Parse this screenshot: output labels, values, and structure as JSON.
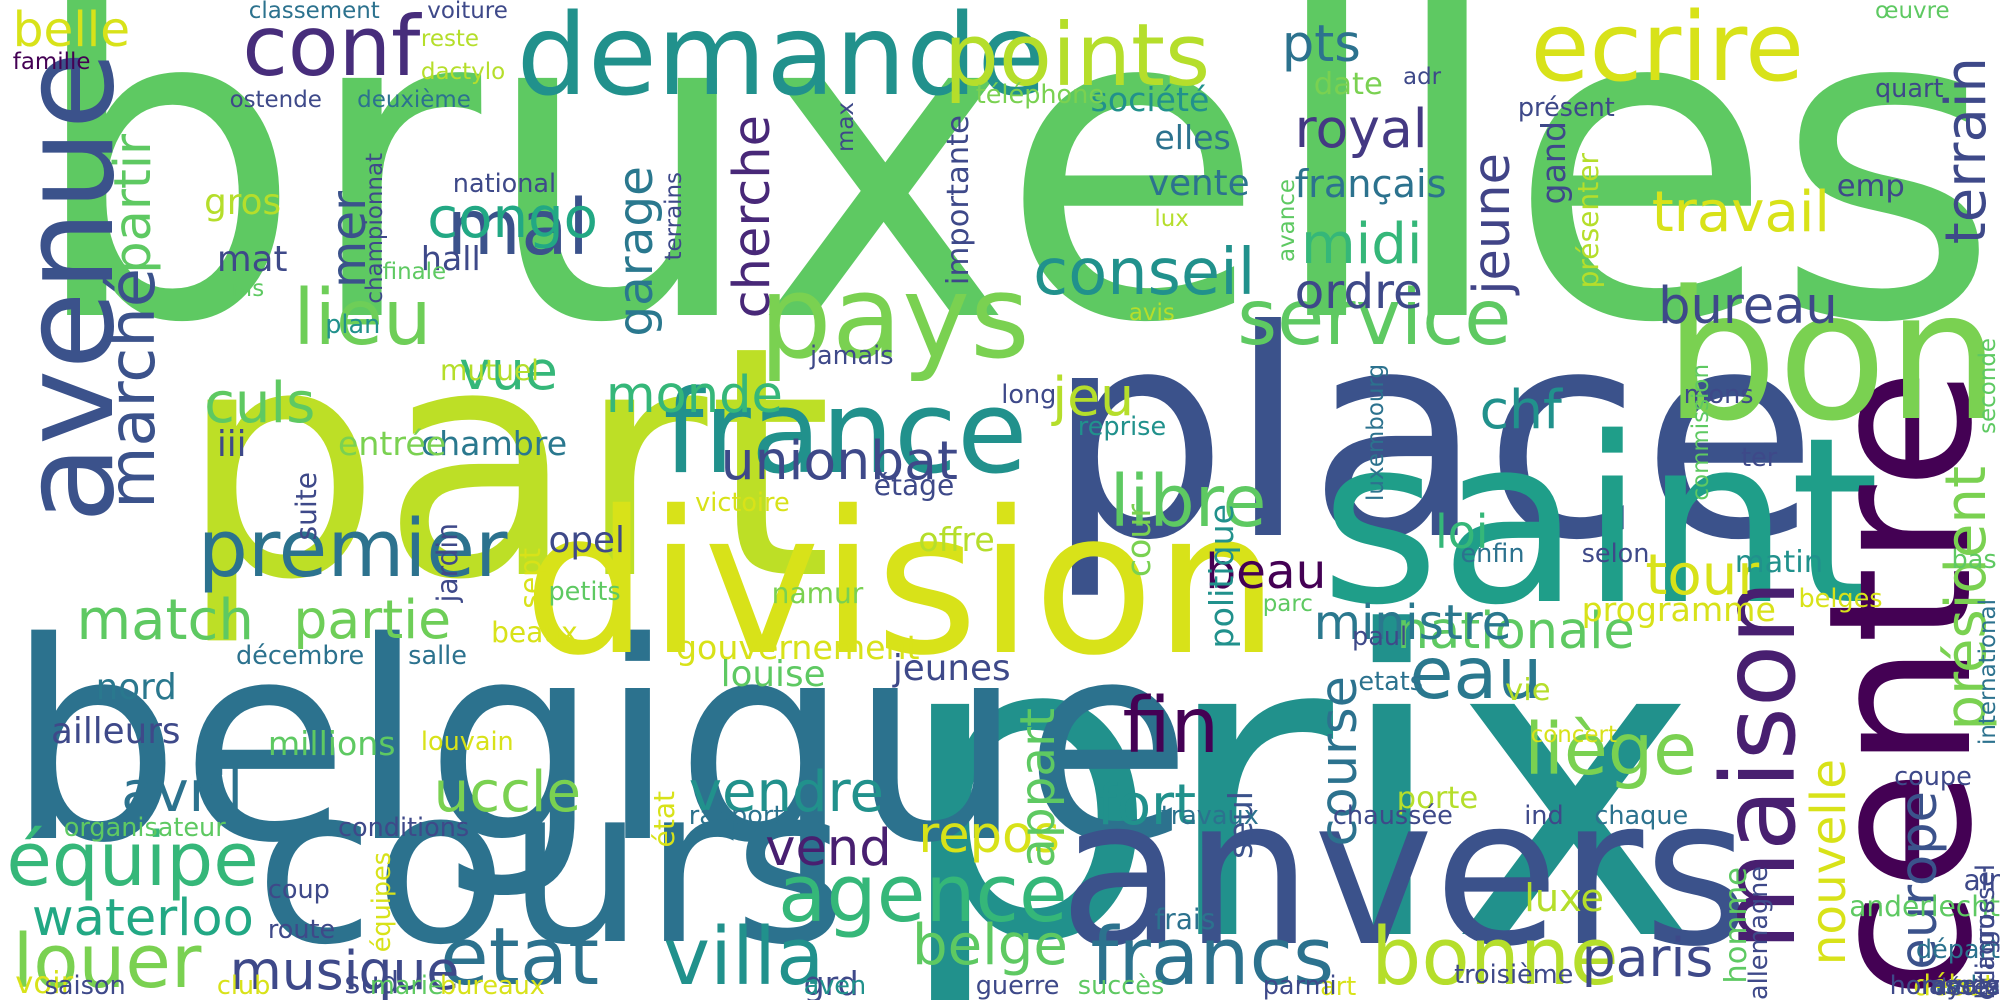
{
  "words": [
    {
      "text": "bruxelles",
      "color": "#5ec962"
    },
    {
      "text": "prix",
      "color": "#21918c"
    },
    {
      "text": "part",
      "color": "#bddf26"
    },
    {
      "text": "belgique",
      "color": "#2c728e"
    },
    {
      "text": "place",
      "color": "#3b528b"
    },
    {
      "text": "division",
      "color": "#d8e219"
    },
    {
      "text": "saint",
      "color": "#1f9e89"
    },
    {
      "text": "centre",
      "color": "#440154"
    },
    {
      "text": "anvers",
      "color": "#3b528b"
    },
    {
      "text": "cours",
      "color": "#2c728e"
    },
    {
      "text": "bon",
      "color": "#7ad151"
    },
    {
      "text": "avenue",
      "color": "#3b528b"
    },
    {
      "text": "demande",
      "color": "#21918c"
    },
    {
      "text": "pays",
      "color": "#7ad151"
    },
    {
      "text": "france",
      "color": "#21918c"
    },
    {
      "text": "maison",
      "color": "#481f70"
    },
    {
      "text": "ecrire",
      "color": "#d8e219"
    },
    {
      "text": "points",
      "color": "#b5de2b"
    },
    {
      "text": "conf",
      "color": "#472d7b"
    },
    {
      "text": "premier",
      "color": "#2c728e"
    },
    {
      "text": "lieu",
      "color": "#6ece58"
    },
    {
      "text": "mal",
      "color": "#3b528b"
    },
    {
      "text": "service",
      "color": "#5ec962"
    },
    {
      "text": "état",
      "color": "#2c728e"
    },
    {
      "text": "villa",
      "color": "#21918c"
    },
    {
      "text": "francs",
      "color": "#2c728e"
    },
    {
      "text": "agence",
      "color": "#35b779"
    },
    {
      "text": "bonne",
      "color": "#b5de2b"
    },
    {
      "text": "louer",
      "color": "#7ad151"
    },
    {
      "text": "musique",
      "color": "#3e4989"
    },
    {
      "text": "équipe",
      "color": "#35b779"
    },
    {
      "text": "waterloo",
      "color": "#22a884"
    },
    {
      "text": "fin",
      "color": "#440154"
    },
    {
      "text": "libre",
      "color": "#5ec962"
    },
    {
      "text": "eau",
      "color": "#2a788e"
    },
    {
      "text": "liège",
      "color": "#7ad151"
    },
    {
      "text": "nationale",
      "color": "#5ec962"
    },
    {
      "text": "terrain",
      "color": "#3e4989"
    },
    {
      "text": "travail",
      "color": "#d8e219"
    },
    {
      "text": "bureau",
      "color": "#3e4989"
    },
    {
      "text": "président",
      "color": "#7ad151"
    },
    {
      "text": "europe",
      "color": "#3b528b"
    },
    {
      "text": "nouvelle",
      "color": "#d8e219"
    },
    {
      "text": "paris",
      "color": "#3e4989"
    },
    {
      "text": "tour",
      "color": "#d8e219"
    },
    {
      "text": "marché",
      "color": "#3b528b"
    },
    {
      "text": "partir",
      "color": "#5ec962"
    },
    {
      "text": "culs",
      "color": "#5ec962"
    },
    {
      "text": "vue",
      "color": "#35b779"
    },
    {
      "text": "congo",
      "color": "#22a884"
    },
    {
      "text": "conseil",
      "color": "#21918c"
    },
    {
      "text": "midi",
      "color": "#35b779"
    },
    {
      "text": "ordre",
      "color": "#3e4989"
    },
    {
      "text": "royal",
      "color": "#443983"
    },
    {
      "text": "jeune",
      "color": "#414487"
    },
    {
      "text": "cherche",
      "color": "#482878"
    },
    {
      "text": "garage",
      "color": "#2a788e"
    },
    {
      "text": "match",
      "color": "#5ec962"
    },
    {
      "text": "partie",
      "color": "#6ece58"
    },
    {
      "text": "avril",
      "color": "#2c728e"
    },
    {
      "text": "uccle",
      "color": "#7ad151"
    },
    {
      "text": "vendre",
      "color": "#21918c"
    },
    {
      "text": "vend",
      "color": "#481f70"
    },
    {
      "text": "repos",
      "color": "#d8e219"
    },
    {
      "text": "belge",
      "color": "#5ec962"
    },
    {
      "text": "unionbat",
      "color": "#3e4989"
    },
    {
      "text": "monde",
      "color": "#35b779"
    },
    {
      "text": "jeu",
      "color": "#b5de2b"
    },
    {
      "text": "chf",
      "color": "#21918c"
    },
    {
      "text": "ministre",
      "color": "#2a788e"
    },
    {
      "text": "course",
      "color": "#2c728e"
    },
    {
      "text": "appart",
      "color": "#5ec962"
    },
    {
      "text": "fort",
      "color": "#21918c"
    },
    {
      "text": "beau",
      "color": "#440154"
    },
    {
      "text": "loi",
      "color": "#35b779"
    },
    {
      "text": "mer",
      "color": "#3b528b"
    },
    {
      "text": "pts",
      "color": "#2c728e"
    },
    {
      "text": "belle",
      "color": "#d8e219"
    },
    {
      "text": "luxe",
      "color": "#b5de2b"
    },
    {
      "text": "homme",
      "color": "#5ec962"
    },
    {
      "text": "gouvernement",
      "color": "#d8e219"
    },
    {
      "text": "louise",
      "color": "#5ec962"
    },
    {
      "text": "jeunes",
      "color": "#3e4989"
    },
    {
      "text": "millions",
      "color": "#5ec962"
    },
    {
      "text": "ailleurs",
      "color": "#3e4989"
    },
    {
      "text": "nord",
      "color": "#2a788e"
    },
    {
      "text": "gros",
      "color": "#b5de2b"
    },
    {
      "text": "mat",
      "color": "#3e4989"
    },
    {
      "text": "hall",
      "color": "#3e4989"
    },
    {
      "text": "chambre",
      "color": "#2a788e"
    },
    {
      "text": "entrée",
      "color": "#7ad151"
    },
    {
      "text": "opel",
      "color": "#3e4989"
    },
    {
      "text": "namur",
      "color": "#7ad151"
    },
    {
      "text": "offre",
      "color": "#b5de2b"
    },
    {
      "text": "cour",
      "color": "#7ad151"
    },
    {
      "text": "matin",
      "color": "#21918c"
    },
    {
      "text": "programme",
      "color": "#d8e219"
    },
    {
      "text": "porte",
      "color": "#b5de2b"
    },
    {
      "text": "seul",
      "color": "#3b528b"
    },
    {
      "text": "politique",
      "color": "#21918c"
    },
    {
      "text": "vente",
      "color": "#2c728e"
    },
    {
      "text": "elles",
      "color": "#2c728e"
    },
    {
      "text": "français",
      "color": "#2c728e"
    },
    {
      "text": "société",
      "color": "#21918c"
    },
    {
      "text": "date",
      "color": "#7ad151"
    },
    {
      "text": "gand",
      "color": "#3e4989"
    },
    {
      "text": "emp",
      "color": "#3e4989"
    },
    {
      "text": "présenter",
      "color": "#b5de2b"
    },
    {
      "text": "présent",
      "color": "#3e4989"
    },
    {
      "text": "quart",
      "color": "#3e4989"
    },
    {
      "text": "œuvre",
      "color": "#5ec962"
    },
    {
      "text": "adr",
      "color": "#3e4989"
    },
    {
      "text": "téléphone",
      "color": "#7ad151"
    },
    {
      "text": "importante",
      "color": "#3e4989"
    },
    {
      "text": "jamais",
      "color": "#3e4989"
    },
    {
      "text": "max",
      "color": "#3e4989"
    },
    {
      "text": "terrains",
      "color": "#3e4989"
    },
    {
      "text": "national",
      "color": "#3e4989"
    },
    {
      "text": "championnat",
      "color": "#3e4989"
    },
    {
      "text": "finale",
      "color": "#5ec962"
    },
    {
      "text": "unis",
      "color": "#5ec962"
    },
    {
      "text": "plan",
      "color": "#21918c"
    },
    {
      "text": "mutuel",
      "color": "#b5de2b"
    },
    {
      "text": "deuxième",
      "color": "#2c728e"
    },
    {
      "text": "ostende",
      "color": "#3e4989"
    },
    {
      "text": "dactylo",
      "color": "#b5de2b"
    },
    {
      "text": "reste",
      "color": "#b5de2b"
    },
    {
      "text": "voiture",
      "color": "#3e4989"
    },
    {
      "text": "classement",
      "color": "#2c728e"
    },
    {
      "text": "famille",
      "color": "#440154"
    },
    {
      "text": "avis",
      "color": "#b5de2b"
    },
    {
      "text": "lux",
      "color": "#b5de2b"
    },
    {
      "text": "avance",
      "color": "#5ec962"
    },
    {
      "text": "long",
      "color": "#3e4989"
    },
    {
      "text": "reprise",
      "color": "#21918c"
    },
    {
      "text": "luxembourg",
      "color": "#2c728e"
    },
    {
      "text": "mons",
      "color": "#3e4989"
    },
    {
      "text": "ter",
      "color": "#3e4989"
    },
    {
      "text": "commission",
      "color": "#5ec962"
    },
    {
      "text": "seconde",
      "color": "#5ec962"
    },
    {
      "text": "bas",
      "color": "#5ec962"
    },
    {
      "text": "belges",
      "color": "#d8e219"
    },
    {
      "text": "international",
      "color": "#2c728e"
    },
    {
      "text": "coupe",
      "color": "#3e4989"
    },
    {
      "text": "selon",
      "color": "#3e4989"
    },
    {
      "text": "enfin",
      "color": "#2c728e"
    },
    {
      "text": "vie",
      "color": "#b5de2b"
    },
    {
      "text": "étage",
      "color": "#3e4989"
    },
    {
      "text": "victoire",
      "color": "#d8e219"
    },
    {
      "text": "parc",
      "color": "#5ec962"
    },
    {
      "text": "paul",
      "color": "#3e4989"
    },
    {
      "text": "etats",
      "color": "#2c728e"
    },
    {
      "text": "iii",
      "color": "#3e4989"
    },
    {
      "text": "suite",
      "color": "#3e4989"
    },
    {
      "text": "jardin",
      "color": "#3e4989"
    },
    {
      "text": "sept",
      "color": "#d8e219"
    },
    {
      "text": "petits",
      "color": "#5ec962"
    },
    {
      "text": "beaux",
      "color": "#d8e219"
    },
    {
      "text": "décembre",
      "color": "#2c728e"
    },
    {
      "text": "salle",
      "color": "#2c728e"
    },
    {
      "text": "louvain",
      "color": "#d8e219"
    },
    {
      "text": "organisateur",
      "color": "#5ec962"
    },
    {
      "text": "conditions",
      "color": "#3e4989"
    },
    {
      "text": "rapport",
      "color": "#2c728e"
    },
    {
      "text": "travaux",
      "color": "#2c728e"
    },
    {
      "text": "chaussée",
      "color": "#3e4989"
    },
    {
      "text": "ind",
      "color": "#3e4989"
    },
    {
      "text": "chaque",
      "color": "#2c728e"
    },
    {
      "text": "concert",
      "color": "#d8e219"
    },
    {
      "text": "état",
      "color": "#d8e219"
    },
    {
      "text": "équipes",
      "color": "#d8e219"
    },
    {
      "text": "coup",
      "color": "#3e4989"
    },
    {
      "text": "route",
      "color": "#3e4989"
    },
    {
      "text": "voir",
      "color": "#d8e219"
    },
    {
      "text": "saison",
      "color": "#3e4989"
    },
    {
      "text": "club",
      "color": "#d8e219"
    },
    {
      "text": "sud",
      "color": "#3e4989"
    },
    {
      "text": "marie",
      "color": "#5ec962"
    },
    {
      "text": "bureaux",
      "color": "#d8e219"
    },
    {
      "text": "art",
      "color": "#d8e219"
    },
    {
      "text": "succès",
      "color": "#5ec962"
    },
    {
      "text": "grd",
      "color": "#3e4989"
    },
    {
      "text": "aven",
      "color": "#21918c"
    },
    {
      "text": "guerre",
      "color": "#3e4989"
    },
    {
      "text": "parmi",
      "color": "#3e4989"
    },
    {
      "text": "frais",
      "color": "#2c728e"
    },
    {
      "text": "troisième",
      "color": "#3e4989"
    },
    {
      "text": "allemagne",
      "color": "#3e4989"
    },
    {
      "text": "bilingue",
      "color": "#3e4989"
    },
    {
      "text": "radio",
      "color": "#2c728e"
    },
    {
      "text": "début",
      "color": "#d8e219"
    },
    {
      "text": "royale",
      "color": "#3e4989"
    },
    {
      "text": "anderlecht",
      "color": "#5ec962"
    },
    {
      "text": "air",
      "color": "#3e4989"
    },
    {
      "text": "départ",
      "color": "#2c728e"
    },
    {
      "text": "ecagrossel",
      "color": "#3e4989"
    },
    {
      "text": "assez",
      "color": "#3e4989"
    },
    {
      "text": "hommes",
      "color": "#3e4989"
    },
    {
      "text": "décès",
      "color": "#3e4989"
    }
  ]
}
